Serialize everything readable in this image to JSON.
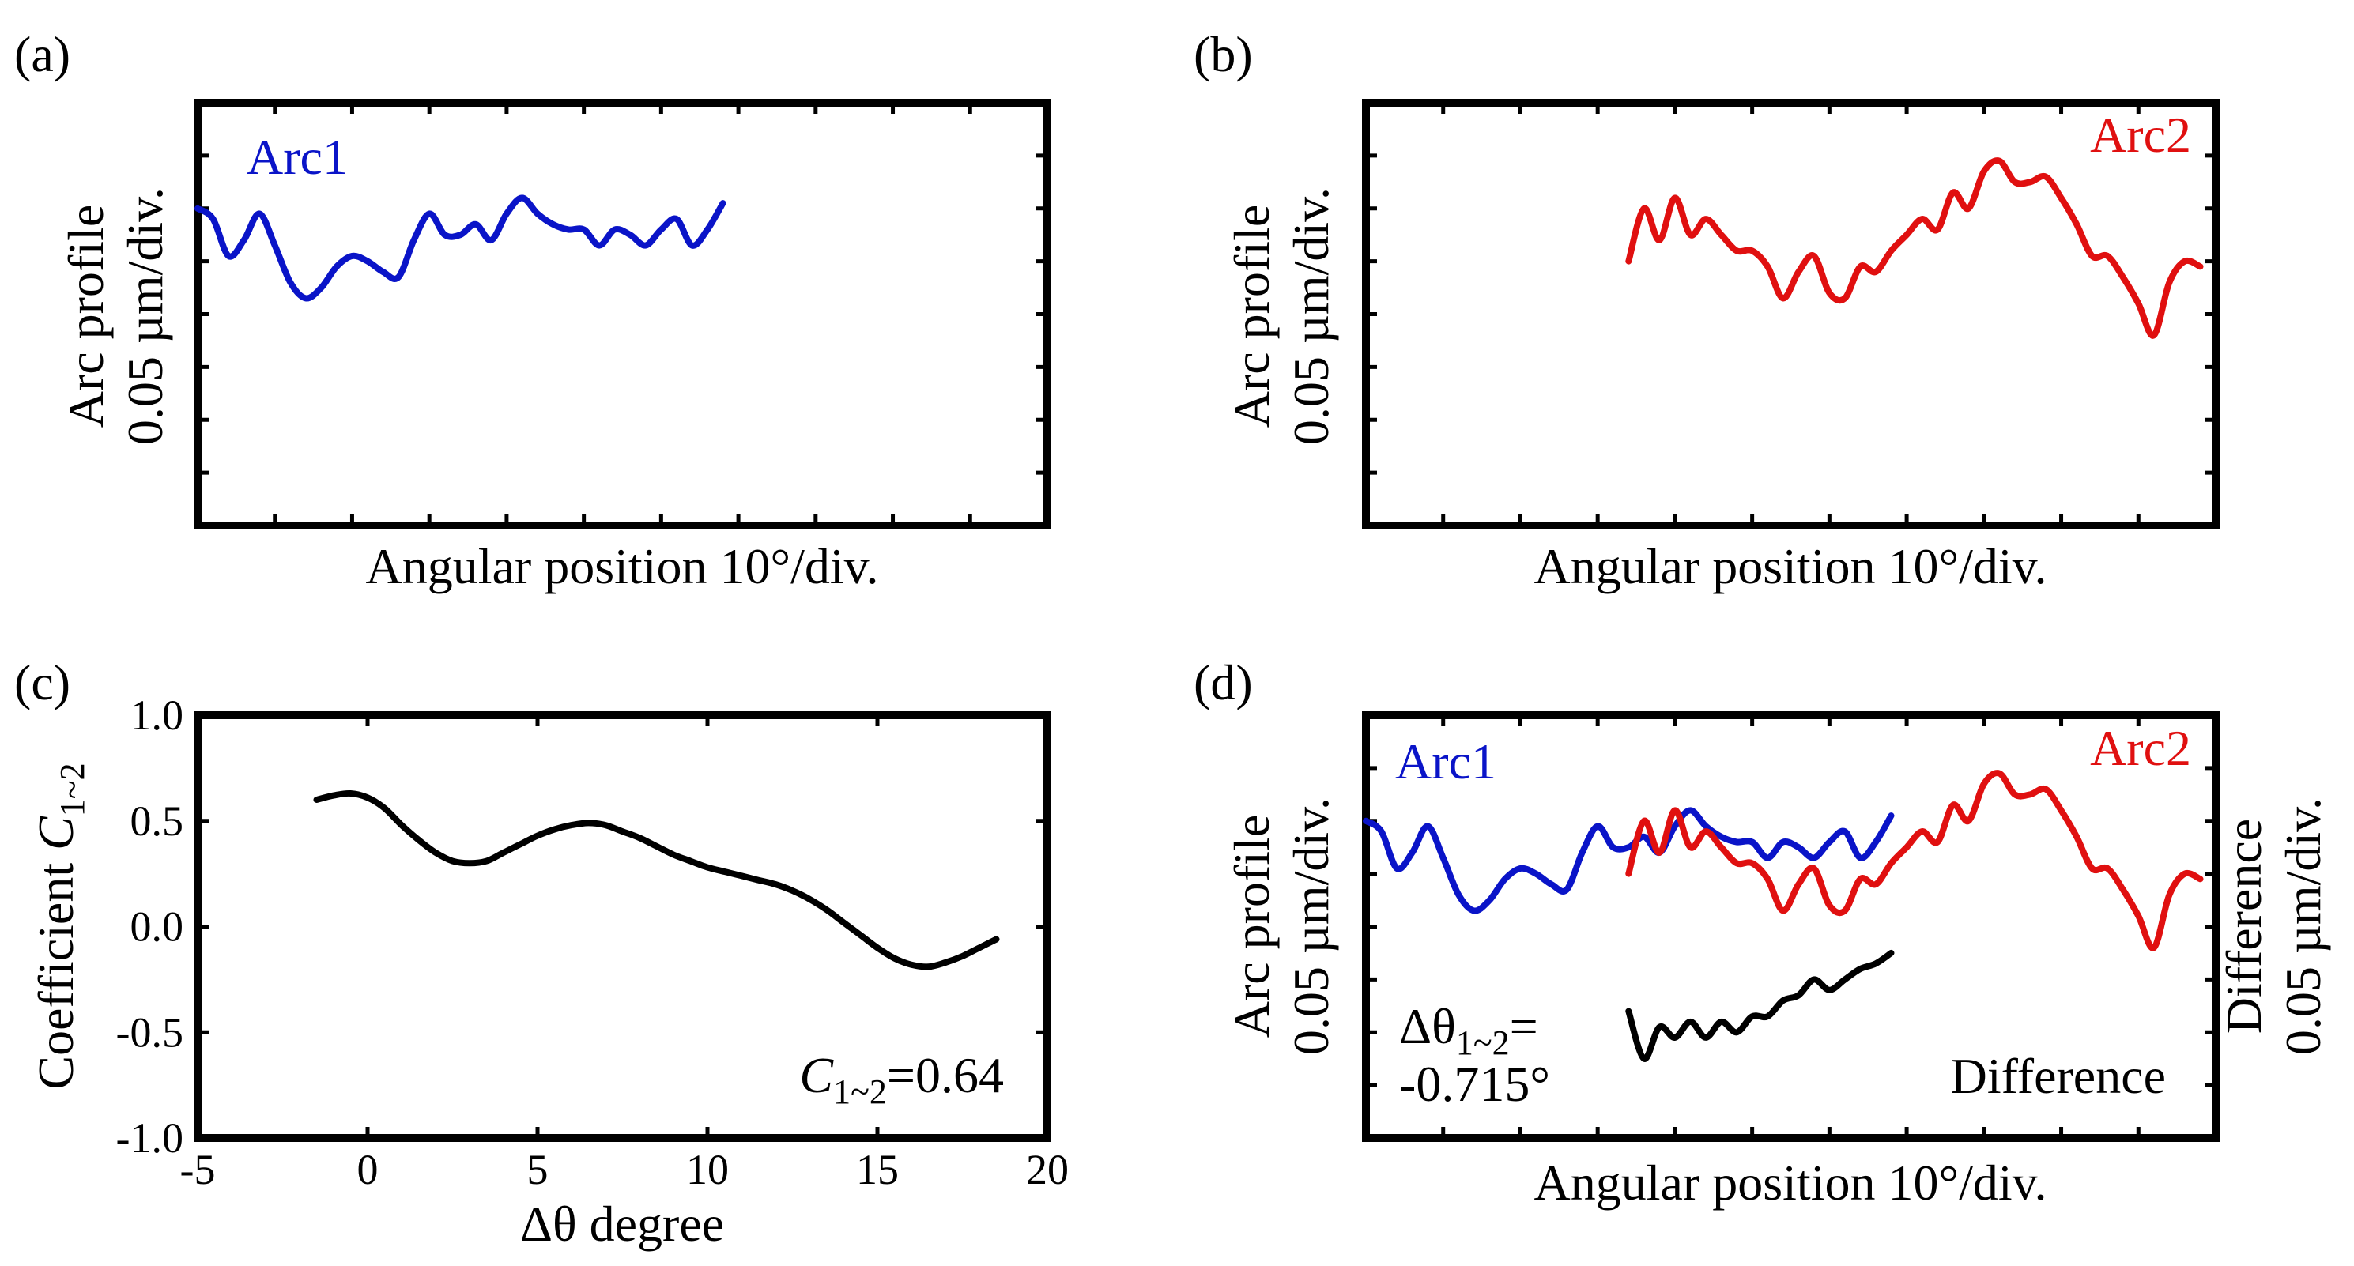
{
  "colors": {
    "arc1": "#0a14c8",
    "arc2": "#e01010",
    "diff": "#000000",
    "frame": "#000000"
  },
  "panels": {
    "a": {
      "label": "(a)",
      "ylabel_line1": "Arc profile",
      "ylabel_line2": "0.05 µm/div.",
      "xlabel": "Angular position 10°/div.",
      "series_label": "Arc1"
    },
    "b": {
      "label": "(b)",
      "ylabel_line1": "Arc profile",
      "ylabel_line2": "0.05 µm/div.",
      "xlabel": "Angular position 10°/div.",
      "series_label": "Arc2"
    },
    "c": {
      "label": "(c)",
      "ylabel_text": "Coefficient ",
      "ylabel_var": "C",
      "ylabel_sub": "1~2",
      "xlabel_symbol": "Δθ",
      "xlabel_text": " degree",
      "annotation_var": "C",
      "annotation_sub": "1~2",
      "annotation_value": "=0.64"
    },
    "d": {
      "label": "(d)",
      "ylabel_line1": "Arc profile",
      "ylabel_line2": "0.05 µm/div.",
      "y2label_line1": "Difference",
      "y2label_line2": "0.05 µm/div.",
      "xlabel": "Angular position 10°/div.",
      "arc1_label": "Arc1",
      "arc2_label": "Arc2",
      "difference_label": "Difference",
      "shift_symbol": "Δθ",
      "shift_sub": "1~2",
      "shift_eq": "=",
      "shift_value": "-0.715°"
    }
  },
  "chart_data": [
    {
      "panel": "a",
      "type": "line",
      "title": "",
      "xlabel": "Angular position 10°/div.",
      "ylabel": "Arc profile 0.05 µm/div.",
      "xlim": [
        0,
        55
      ],
      "ylim": [
        0,
        8
      ],
      "series": [
        {
          "name": "Arc1",
          "x": [
            0,
            1,
            2,
            3,
            4,
            5,
            6,
            7,
            8,
            9,
            10,
            11,
            12,
            13,
            14,
            15,
            16,
            17,
            18,
            19,
            20,
            21,
            22,
            23,
            24,
            25,
            26,
            27,
            28,
            29,
            30,
            31,
            32,
            33,
            34
          ],
          "y": [
            6.0,
            5.8,
            5.1,
            5.4,
            5.9,
            5.3,
            4.6,
            4.3,
            4.5,
            4.9,
            5.1,
            5.0,
            4.8,
            4.7,
            5.4,
            5.9,
            5.5,
            5.5,
            5.7,
            5.4,
            5.9,
            6.2,
            5.9,
            5.7,
            5.6,
            5.6,
            5.3,
            5.6,
            5.5,
            5.3,
            5.6,
            5.8,
            5.3,
            5.6,
            6.1
          ]
        }
      ]
    },
    {
      "panel": "b",
      "type": "line",
      "title": "",
      "xlabel": "Angular position 10°/div.",
      "ylabel": "Arc profile 0.05 µm/div.",
      "xlim": [
        0,
        55
      ],
      "ylim": [
        0,
        8
      ],
      "series": [
        {
          "name": "Arc2",
          "x": [
            17,
            18,
            19,
            20,
            21,
            22,
            23,
            24,
            25,
            26,
            27,
            28,
            29,
            30,
            31,
            32,
            33,
            34,
            35,
            36,
            37,
            38,
            39,
            40,
            41,
            42,
            43,
            44,
            45,
            46,
            47,
            48,
            49,
            50,
            51,
            52,
            53,
            54
          ],
          "y": [
            5.0,
            6.0,
            5.4,
            6.2,
            5.5,
            5.8,
            5.5,
            5.2,
            5.2,
            4.9,
            4.3,
            4.8,
            5.1,
            4.4,
            4.3,
            4.9,
            4.8,
            5.2,
            5.5,
            5.8,
            5.6,
            6.3,
            6.0,
            6.7,
            6.9,
            6.5,
            6.5,
            6.6,
            6.2,
            5.7,
            5.1,
            5.1,
            4.7,
            4.2,
            3.6,
            4.6,
            5.0,
            4.9
          ]
        }
      ]
    },
    {
      "panel": "c",
      "type": "line",
      "title": "",
      "xlabel": "Δθ degree",
      "ylabel": "Coefficient C1~2",
      "xlim": [
        -5,
        20
      ],
      "ylim": [
        -1.0,
        1.0
      ],
      "xticks": [
        -5,
        0,
        5,
        10,
        15,
        20
      ],
      "yticks": [
        -1.0,
        -0.5,
        0.0,
        0.5,
        1.0
      ],
      "xtick_labels": [
        "-5",
        "0",
        "5",
        "10",
        "15",
        "20"
      ],
      "ytick_labels": [
        "-1.0",
        "-0.5",
        "0.0",
        "0.5",
        "1.0"
      ],
      "annotation": "C1~2=0.64",
      "series": [
        {
          "name": "C1~2",
          "x": [
            -1.5,
            -1.0,
            -0.5,
            0.0,
            0.5,
            1.0,
            1.5,
            2.0,
            2.5,
            3.0,
            3.5,
            4.0,
            4.5,
            5.0,
            5.5,
            6.0,
            6.5,
            7.0,
            7.5,
            8.0,
            8.5,
            9.0,
            9.5,
            10.0,
            10.5,
            11.0,
            11.5,
            12.0,
            12.5,
            13.0,
            13.5,
            14.0,
            14.5,
            15.0,
            15.5,
            16.0,
            16.5,
            17.0,
            17.5,
            18.0,
            18.5
          ],
          "y": [
            0.6,
            0.62,
            0.63,
            0.61,
            0.56,
            0.48,
            0.41,
            0.35,
            0.31,
            0.3,
            0.31,
            0.35,
            0.39,
            0.43,
            0.46,
            0.48,
            0.49,
            0.48,
            0.45,
            0.42,
            0.38,
            0.34,
            0.31,
            0.28,
            0.26,
            0.24,
            0.22,
            0.2,
            0.17,
            0.13,
            0.08,
            0.02,
            -0.04,
            -0.1,
            -0.15,
            -0.18,
            -0.19,
            -0.17,
            -0.14,
            -0.1,
            -0.06
          ]
        }
      ]
    },
    {
      "panel": "d",
      "type": "line",
      "title": "",
      "xlabel": "Angular position 10°/div.",
      "ylabel": "Arc profile 0.05 µm/div.",
      "y2label": "Difference 0.05 µm/div.",
      "xlim": [
        0,
        55
      ],
      "ylim": [
        0,
        8
      ],
      "annotation": "Δθ1~2=-0.715°",
      "series": [
        {
          "name": "Arc1",
          "x": [
            0,
            1,
            2,
            3,
            4,
            5,
            6,
            7,
            8,
            9,
            10,
            11,
            12,
            13,
            14,
            15,
            16,
            17,
            18,
            19,
            20,
            21,
            22,
            23,
            24,
            25,
            26,
            27,
            28,
            29,
            30,
            31,
            32,
            33,
            34
          ],
          "y": [
            6.0,
            5.8,
            5.1,
            5.4,
            5.9,
            5.3,
            4.6,
            4.3,
            4.5,
            4.9,
            5.1,
            5.0,
            4.8,
            4.7,
            5.4,
            5.9,
            5.5,
            5.5,
            5.7,
            5.4,
            5.9,
            6.2,
            5.9,
            5.7,
            5.6,
            5.6,
            5.3,
            5.6,
            5.5,
            5.3,
            5.6,
            5.8,
            5.3,
            5.6,
            6.1
          ]
        },
        {
          "name": "Arc2",
          "x": [
            17,
            18,
            19,
            20,
            21,
            22,
            23,
            24,
            25,
            26,
            27,
            28,
            29,
            30,
            31,
            32,
            33,
            34,
            35,
            36,
            37,
            38,
            39,
            40,
            41,
            42,
            43,
            44,
            45,
            46,
            47,
            48,
            49,
            50,
            51,
            52,
            53,
            54
          ],
          "y": [
            5.0,
            6.0,
            5.4,
            6.2,
            5.5,
            5.8,
            5.5,
            5.2,
            5.2,
            4.9,
            4.3,
            4.8,
            5.1,
            4.4,
            4.3,
            4.9,
            4.8,
            5.2,
            5.5,
            5.8,
            5.6,
            6.3,
            6.0,
            6.7,
            6.9,
            6.5,
            6.5,
            6.6,
            6.2,
            5.7,
            5.1,
            5.1,
            4.7,
            4.2,
            3.6,
            4.6,
            5.0,
            4.9
          ]
        },
        {
          "name": "Difference",
          "x": [
            17,
            18,
            19,
            20,
            21,
            22,
            23,
            24,
            25,
            26,
            27,
            28,
            29,
            30,
            31,
            32,
            33,
            34
          ],
          "y": [
            2.4,
            1.5,
            2.1,
            1.9,
            2.2,
            1.9,
            2.2,
            2.0,
            2.3,
            2.3,
            2.6,
            2.7,
            3.0,
            2.8,
            3.0,
            3.2,
            3.3,
            3.5
          ]
        }
      ]
    }
  ]
}
